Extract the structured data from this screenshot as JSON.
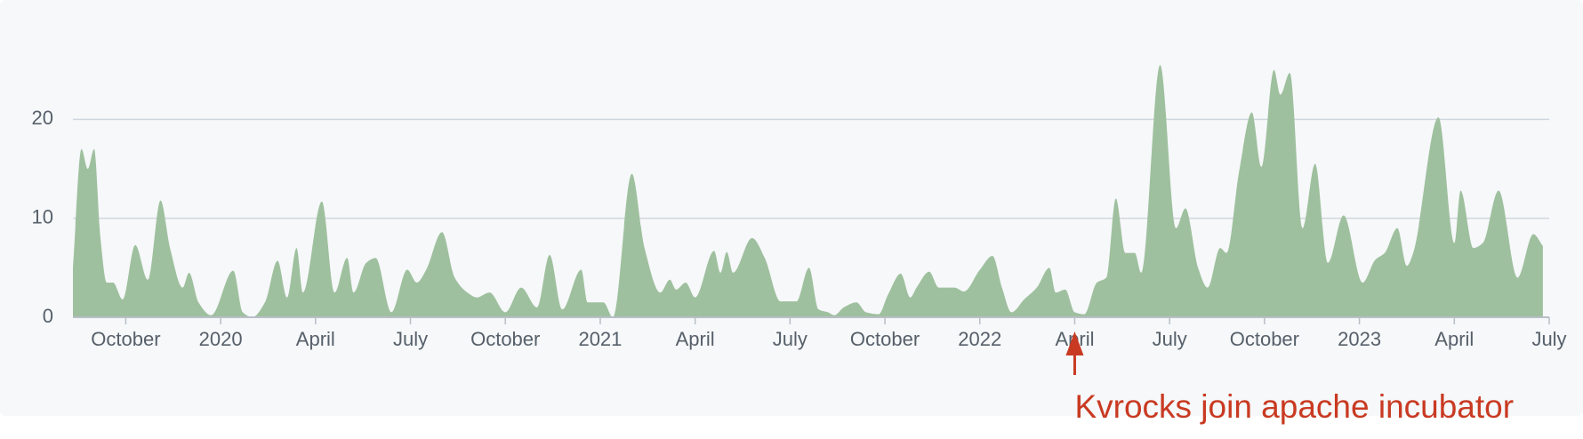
{
  "chart_data": {
    "type": "area",
    "color": "#9fc09e",
    "x": [
      7.33,
      7.6,
      7.8,
      8.0,
      8.2,
      8.4,
      8.6,
      8.9,
      9.3,
      9.7,
      10.1,
      10.4,
      10.8,
      11.0,
      11.3,
      11.7,
      12.4,
      12.7,
      13.0,
      13.4,
      13.8,
      14.1,
      14.4,
      14.6,
      15.2,
      15.6,
      16.0,
      16.2,
      16.6,
      16.9,
      17.4,
      17.9,
      18.2,
      18.5,
      19.0,
      19.4,
      19.8,
      20.1,
      20.5,
      21.0,
      21.5,
      22.0,
      22.4,
      22.8,
      23.4,
      23.6,
      24.1,
      24.4,
      25.0,
      25.4,
      25.9,
      26.2,
      26.4,
      26.7,
      27.0,
      27.6,
      27.8,
      28.0,
      28.2,
      28.8,
      29.2,
      29.7,
      30.2,
      30.6,
      30.9,
      31.2,
      31.4,
      31.7,
      32.1,
      32.4,
      32.8,
      33.1,
      33.5,
      33.8,
      34.0,
      34.4,
      34.7,
      35.2,
      35.5,
      36.0,
      36.4,
      36.7,
      37.0,
      37.4,
      37.8,
      38.2,
      38.4,
      38.7,
      39.0,
      39.3,
      39.7,
      40.0,
      40.3,
      40.6,
      40.9,
      41.1,
      41.7,
      42.2,
      42.5,
      42.9,
      43.2,
      43.6,
      43.8,
      44.2,
      44.6,
      44.9,
      45.3,
      45.5,
      45.8,
      46.2,
      46.6,
      47.0,
      47.5,
      48.1,
      48.5,
      48.8,
      49.2,
      49.5,
      49.7,
      50.5,
      51.0,
      51.2,
      51.6,
      51.9,
      52.4,
      53.0,
      53.5,
      53.8
    ],
    "values": [
      5,
      17,
      15,
      17,
      8,
      3.5,
      3.5,
      1.8,
      7.3,
      3.8,
      11.8,
      7,
      3,
      4.5,
      1.5,
      0.2,
      4.7,
      0.5,
      0,
      1.5,
      5.7,
      2,
      7,
      2.5,
      11.7,
      2.5,
      6,
      2.5,
      5.5,
      6,
      0.5,
      4.8,
      3.5,
      4.8,
      8.6,
      4,
      2.5,
      2,
      2.5,
      0.5,
      3,
      1,
      6.3,
      0.8,
      4.8,
      1.5,
      1.5,
      0,
      14.5,
      7,
      2.5,
      3.8,
      2.8,
      3.5,
      2,
      6.7,
      4.5,
      6.6,
      4.5,
      8,
      6,
      1.6,
      1.6,
      5,
      0.8,
      0.5,
      0.2,
      1,
      1.5,
      0.5,
      0.3,
      2.3,
      4.4,
      2,
      3,
      4.6,
      3,
      3,
      2.6,
      4.8,
      6.2,
      3,
      0.5,
      1.8,
      3,
      5,
      2.5,
      2.8,
      0.5,
      0.3,
      3.5,
      4,
      12,
      6.5,
      6.5,
      4.5,
      25.5,
      9,
      11,
      5,
      3,
      7,
      6.5,
      14.8,
      20.7,
      15.2,
      25,
      22.5,
      24.7,
      9,
      15.5,
      5.5,
      10.3,
      3.5,
      5.8,
      6.5,
      9,
      5.2,
      6.5,
      20.2,
      7.5,
      12.8,
      7,
      7.5,
      12.8,
      4,
      8.4,
      7.2
    ],
    "xlim": [
      7.33,
      54
    ],
    "xticks": [
      {
        "value": 9,
        "label": "October"
      },
      {
        "value": 12,
        "label": "2020"
      },
      {
        "value": 15,
        "label": "April"
      },
      {
        "value": 18,
        "label": "July"
      },
      {
        "value": 21,
        "label": "October"
      },
      {
        "value": 24,
        "label": "2021"
      },
      {
        "value": 27,
        "label": "April"
      },
      {
        "value": 30,
        "label": "July"
      },
      {
        "value": 33,
        "label": "October"
      },
      {
        "value": 36,
        "label": "2022"
      },
      {
        "value": 39,
        "label": "April"
      },
      {
        "value": 42,
        "label": "July"
      },
      {
        "value": 45,
        "label": "October"
      },
      {
        "value": 48,
        "label": "2023"
      },
      {
        "value": 51,
        "label": "April"
      },
      {
        "value": 54,
        "label": "July"
      }
    ],
    "ylim": [
      0,
      30
    ],
    "yticks": [
      0,
      10,
      20
    ],
    "grid": true,
    "annotation": {
      "text": "Kvrocks join apache incubator",
      "x": 39,
      "color": "#c93a22"
    }
  }
}
